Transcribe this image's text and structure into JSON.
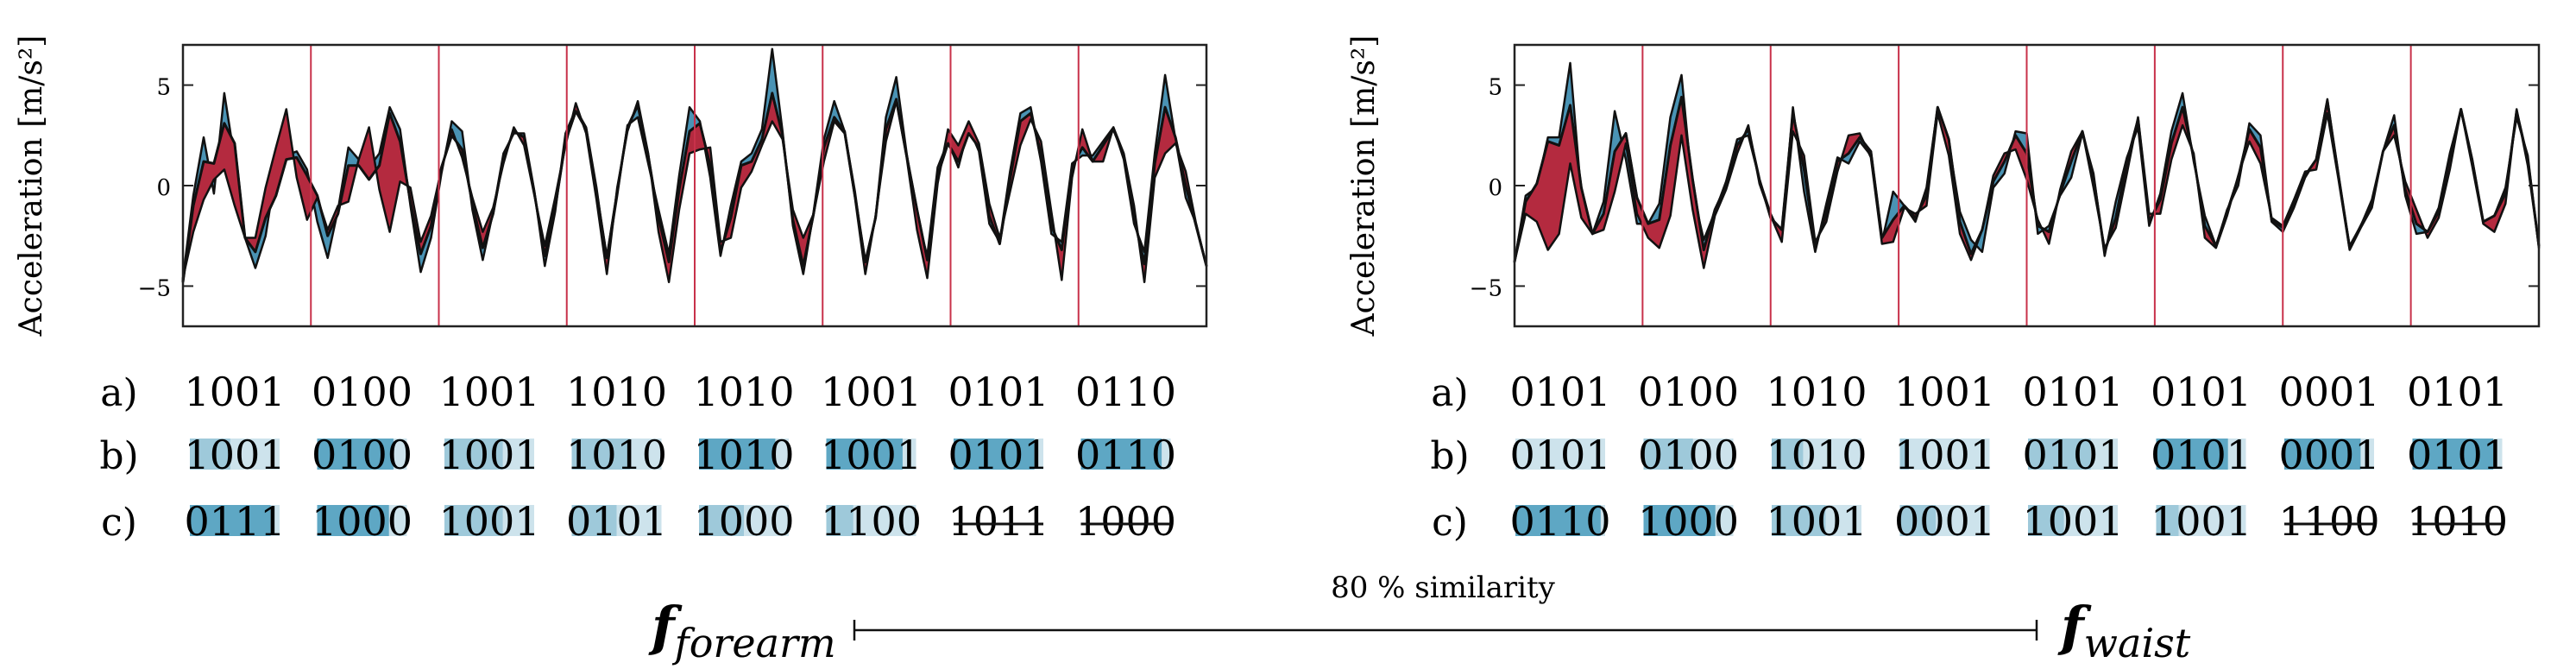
{
  "colors": {
    "above": "#4a93b4",
    "below": "#b42a3f",
    "line": "#111111",
    "window_line": "#c8314a",
    "cell_light": "#cde3ec",
    "cell_mid": "#9ec9da",
    "cell_dark": "#5ea7c4"
  },
  "row_labels": [
    "a)",
    "b)",
    "c)"
  ],
  "chart_data": [
    {
      "type": "area",
      "name": "forearm",
      "ylabel": "Acceleration [m/s²]",
      "ylim": [
        -7,
        7
      ],
      "yticks": [
        -5,
        0,
        5
      ],
      "grid": false,
      "windows": 8,
      "series": [
        {
          "name": "",
          "color": "#4a93b4",
          "values": [
            -4.6,
            -0.5,
            2.4,
            -0.4,
            4.6,
            1.3,
            -2.6,
            -4.1,
            -2.5,
            0.8,
            1.5,
            1.7,
            0.8,
            -1.8,
            -3.6,
            -1.2,
            1.9,
            1.3,
            0.9,
            1.6,
            3.9,
            2.8,
            -1.0,
            -4.3,
            -2.6,
            0.6,
            3.2,
            2.7,
            -1.2,
            -3.7,
            -1.3,
            1.6,
            2.6,
            2.6,
            -0.3,
            -4.0,
            -1.3,
            2.6,
            3.8,
            2.9,
            -0.1,
            -3.8,
            -0.5,
            3.0,
            3.4,
            1.1,
            -1.2,
            -3.4,
            0.5,
            3.9,
            3.2,
            0.4,
            -3.5,
            -1.0,
            1.2,
            1.6,
            2.8,
            6.8,
            2.7,
            -2.0,
            -4.4,
            -1.3,
            2.3,
            4.2,
            2.7,
            -0.3,
            -4.0,
            -1.6,
            3.4,
            5.4,
            1.6,
            -1.6,
            -3.5,
            0.9,
            2.2,
            0.9,
            2.9,
            1.7,
            -1.9,
            -2.8,
            0.7,
            3.6,
            3.9,
            1.2,
            -2.4,
            -2.8,
            1.1,
            1.5,
            1.5,
            2.2,
            2.9,
            1.3,
            -1.9,
            -3.3,
            1.6,
            5.5,
            2.3,
            -0.6,
            -1.9,
            -4.0
          ]
        },
        {
          "name": "",
          "color": "#111111",
          "values": [
            -4.8,
            -1.0,
            1.2,
            1.1,
            3.1,
            2.1,
            -2.6,
            -3.3,
            -1.6,
            -0.5,
            1.3,
            1.4,
            0.5,
            -0.5,
            -2.5,
            -1.4,
            1.0,
            1.0,
            0.3,
            1.0,
            3.6,
            2.2,
            -0.8,
            -3.4,
            -2.0,
            0.9,
            2.5,
            1.8,
            -0.9,
            -3.1,
            -1.4,
            1.4,
            2.7,
            2.4,
            -0.4,
            -3.5,
            -1.1,
            2.2,
            3.7,
            2.8,
            -0.3,
            -3.6,
            -0.3,
            2.9,
            4.0,
            1.5,
            -1.6,
            -3.8,
            -0.2,
            2.7,
            3.1,
            1.0,
            -3.3,
            -1.6,
            1.0,
            1.2,
            2.3,
            4.6,
            2.5,
            -1.7,
            -4.0,
            -1.4,
            1.9,
            3.4,
            2.7,
            -0.5,
            -3.8,
            -1.6,
            2.8,
            4.3,
            1.5,
            -1.2,
            -3.7,
            0.5,
            2.1,
            1.2,
            2.6,
            1.9,
            -1.5,
            -2.9,
            0.3,
            3.2,
            3.6,
            1.6,
            -2.0,
            -3.2,
            0.9,
            1.9,
            1.2,
            2.0,
            2.8,
            1.5,
            -1.6,
            -3.9,
            1.1,
            3.9,
            2.4,
            0.0,
            -2.0,
            -4.0
          ]
        },
        {
          "name": "",
          "color": "#b42a3f",
          "values": [
            -4.6,
            -2.3,
            -0.7,
            0.3,
            0.8,
            -1.0,
            -2.6,
            -2.6,
            -0.1,
            1.9,
            3.8,
            0.4,
            -1.7,
            -0.6,
            -2.2,
            -1.0,
            -0.8,
            1.3,
            2.9,
            -0.2,
            -2.3,
            0.2,
            -0.1,
            -2.8,
            -1.5,
            0.8,
            2.8,
            1.4,
            -0.6,
            -2.3,
            -1.1,
            1.1,
            2.9,
            2.0,
            -0.5,
            -3.0,
            -0.6,
            2.0,
            4.1,
            2.6,
            -0.7,
            -4.4,
            -0.1,
            2.7,
            4.2,
            1.6,
            -2.3,
            -4.8,
            -1.2,
            1.6,
            1.8,
            1.9,
            -2.8,
            -2.6,
            -0.1,
            0.7,
            2.0,
            3.2,
            2.3,
            -1.2,
            -2.6,
            -1.4,
            1.2,
            3.2,
            2.6,
            -0.6,
            -4.4,
            -1.5,
            2.2,
            4.2,
            1.4,
            -2.2,
            -4.6,
            0.1,
            2.8,
            2.0,
            3.2,
            2.1,
            -0.9,
            -2.6,
            -0.3,
            2.0,
            3.3,
            2.2,
            -1.3,
            -4.7,
            0.4,
            2.8,
            1.2,
            1.2,
            2.9,
            1.6,
            -1.0,
            -4.8,
            0.4,
            1.6,
            2.1,
            0.7,
            -1.9,
            -4.0
          ]
        }
      ],
      "rows": {
        "a": [
          "1001",
          "0100",
          "1001",
          "1010",
          "1010",
          "1001",
          "0101",
          "0110"
        ],
        "b": [
          {
            "bits": "1001",
            "fill": 0.45,
            "strike": false
          },
          {
            "bits": "0100",
            "fill": 0.85,
            "strike": false
          },
          {
            "bits": "1001",
            "fill": 0.65,
            "strike": false
          },
          {
            "bits": "1010",
            "fill": 0.65,
            "strike": false
          },
          {
            "bits": "1010",
            "fill": 0.85,
            "strike": false
          },
          {
            "bits": "1001",
            "fill": 0.85,
            "strike": false
          },
          {
            "bits": "0101",
            "fill": 0.9,
            "strike": false
          },
          {
            "bits": "0110",
            "fill": 0.9,
            "strike": false
          }
        ],
        "c": [
          {
            "bits": "0111",
            "fill": 0.9,
            "strike": false
          },
          {
            "bits": "1000",
            "fill": 0.8,
            "strike": false
          },
          {
            "bits": "1001",
            "fill": 0.65,
            "strike": false
          },
          {
            "bits": "0101",
            "fill": 0.5,
            "strike": false
          },
          {
            "bits": "1000",
            "fill": 0.5,
            "strike": false
          },
          {
            "bits": "1100",
            "fill": 0.3,
            "strike": false
          },
          {
            "bits": "1011",
            "fill": 0,
            "strike": true
          },
          {
            "bits": "1000",
            "fill": 0,
            "strike": true
          }
        ]
      }
    },
    {
      "type": "area",
      "name": "waist",
      "ylabel": "Acceleration [m/s²]",
      "ylim": [
        -7,
        7
      ],
      "yticks": [
        -5,
        0,
        5
      ],
      "grid": false,
      "windows": 8,
      "series": [
        {
          "name": "",
          "color": "#4a93b4",
          "values": [
            -3.8,
            -0.5,
            -0.1,
            2.4,
            2.4,
            6.1,
            -0.5,
            -2.4,
            -0.8,
            3.7,
            1.3,
            -1.9,
            -1.9,
            -0.9,
            3.4,
            5.5,
            -0.3,
            -2.7,
            -1.3,
            0.2,
            2.3,
            2.5,
            0.3,
            -1.4,
            -2.6,
            3.9,
            -0.3,
            -3.3,
            -0.9,
            1.4,
            1.1,
            2.2,
            1.5,
            -2.8,
            -0.3,
            -1.0,
            -1.8,
            -0.1,
            3.9,
            2.1,
            -1.3,
            -2.7,
            -3.3,
            -0.1,
            0.6,
            2.7,
            2.6,
            -2.4,
            -2.0,
            -0.5,
            0.4,
            2.6,
            0.6,
            -3.5,
            -0.8,
            1.4,
            2.9,
            -2.0,
            -0.4,
            2.7,
            4.6,
            1.2,
            -1.5,
            -3.0,
            -1.2,
            0.0,
            3.1,
            2.5,
            -1.8,
            -2.3,
            -1.1,
            0.4,
            1.3,
            4.3,
            0.4,
            -3.0,
            -2.0,
            -0.7,
            1.7,
            3.5,
            -0.5,
            -2.4,
            -2.3,
            -1.1,
            1.6,
            3.7,
            1.3,
            -1.8,
            -1.5,
            -0.1,
            3.4,
            1.5,
            -3.1
          ]
        },
        {
          "name": "",
          "color": "#111111",
          "values": [
            -3.8,
            -0.8,
            0.1,
            2.2,
            2.0,
            4.0,
            -0.1,
            -2.4,
            -1.4,
            1.7,
            2.6,
            -0.6,
            -1.9,
            -1.7,
            2.0,
            4.4,
            0.3,
            -3.2,
            -1.2,
            0.0,
            2.0,
            2.8,
            0.3,
            -1.6,
            -2.2,
            3.6,
            0.8,
            -3.0,
            -1.4,
            1.2,
            1.6,
            2.4,
            1.7,
            -2.6,
            -1.7,
            -1.0,
            -1.6,
            -0.5,
            3.9,
            2.3,
            -1.8,
            -3.4,
            -2.2,
            0.2,
            1.2,
            2.5,
            1.6,
            -2.0,
            -2.3,
            -0.4,
            1.2,
            2.7,
            0.4,
            -3.3,
            -1.6,
            1.2,
            3.3,
            -1.8,
            -0.7,
            2.1,
            3.9,
            1.4,
            -2.0,
            -3.0,
            -1.3,
            0.4,
            2.8,
            1.9,
            -1.7,
            -2.1,
            -0.9,
            0.5,
            1.3,
            4.2,
            0.5,
            -3.1,
            -2.0,
            -0.9,
            1.7,
            3.0,
            -0.2,
            -1.9,
            -2.3,
            -1.3,
            1.4,
            3.8,
            1.3,
            -1.8,
            -1.5,
            -0.4,
            3.7,
            1.3,
            -3.0
          ]
        },
        {
          "name": "",
          "color": "#b42a3f",
          "values": [
            -3.8,
            -1.4,
            -1.8,
            -3.2,
            -2.4,
            1.1,
            -1.6,
            -2.4,
            -2.2,
            -0.3,
            2.1,
            -1.4,
            -2.6,
            -3.1,
            -1.5,
            2.5,
            -1.2,
            -4.1,
            -1.5,
            -0.2,
            1.6,
            3.0,
            0.1,
            -1.5,
            -2.8,
            2.7,
            1.5,
            -2.8,
            -1.8,
            0.7,
            2.5,
            2.6,
            1.4,
            -2.9,
            -2.8,
            -1.1,
            -1.4,
            -1.0,
            3.6,
            1.5,
            -2.4,
            -3.7,
            -2.2,
            0.5,
            1.6,
            1.8,
            0.3,
            -1.7,
            -2.9,
            -0.2,
            1.7,
            2.7,
            -0.1,
            -3.1,
            -2.1,
            0.6,
            3.4,
            -1.4,
            -1.4,
            1.3,
            3.0,
            1.6,
            -2.6,
            -3.1,
            -1.5,
            0.5,
            2.2,
            1.1,
            -1.6,
            -2.0,
            -0.7,
            0.7,
            0.8,
            3.6,
            0.3,
            -3.2,
            -2.1,
            -1.1,
            1.7,
            2.5,
            0.2,
            -1.2,
            -2.6,
            -1.6,
            0.8,
            3.8,
            1.0,
            -1.9,
            -2.3,
            -0.9,
            3.8,
            1.0,
            -3.0
          ]
        }
      ],
      "rows": {
        "a": [
          "0101",
          "0100",
          "1010",
          "1001",
          "0101",
          "0101",
          "0001",
          "0101"
        ],
        "b": [
          {
            "bits": "0101",
            "fill": 0,
            "strike": false
          },
          {
            "bits": "0100",
            "fill": 0.55,
            "strike": false
          },
          {
            "bits": "1010",
            "fill": 0.35,
            "strike": false
          },
          {
            "bits": "1001",
            "fill": 0.1,
            "strike": false
          },
          {
            "bits": "0101",
            "fill": 0.7,
            "strike": false
          },
          {
            "bits": "0101",
            "fill": 0.8,
            "strike": false
          },
          {
            "bits": "0001",
            "fill": 0.85,
            "strike": false
          },
          {
            "bits": "0101",
            "fill": 0.9,
            "strike": false
          }
        ],
        "c": [
          {
            "bits": "0110",
            "fill": 0.95,
            "strike": false
          },
          {
            "bits": "1000",
            "fill": 0.8,
            "strike": false
          },
          {
            "bits": "1001",
            "fill": 0.6,
            "strike": false
          },
          {
            "bits": "0001",
            "fill": 0.4,
            "strike": false
          },
          {
            "bits": "1001",
            "fill": 0.4,
            "strike": false
          },
          {
            "bits": "1001",
            "fill": 0.25,
            "strike": false
          },
          {
            "bits": "1100",
            "fill": 0,
            "strike": true
          },
          {
            "bits": "1010",
            "fill": 0,
            "strike": true
          }
        ]
      }
    }
  ],
  "similarity": {
    "label": "80 % similarity",
    "left_symbol": "f",
    "left_sub": "forearm",
    "right_symbol": "f",
    "right_sub": "waist"
  }
}
